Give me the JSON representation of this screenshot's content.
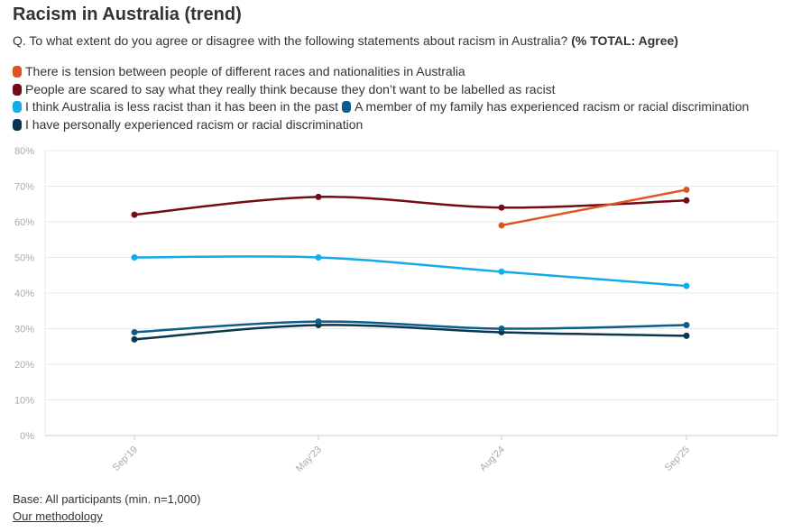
{
  "title": "Racism in Australia (trend)",
  "subtitle": "Q. To what extent do you agree or disagree with the following statements about racism in Australia?",
  "subtitle_bold": "(% TOTAL: Agree)",
  "footer": {
    "base": "Base: All participants (min. n=1,000)",
    "link": "Our methodology"
  },
  "chart_data": {
    "type": "line",
    "x": [
      "Sep'19",
      "May'23",
      "Aug'24",
      "Sep'25"
    ],
    "ylim": [
      0,
      80
    ],
    "yticks": [
      "0%",
      "10%",
      "20%",
      "30%",
      "40%",
      "50%",
      "60%",
      "70%",
      "80%"
    ],
    "grid": true,
    "legend_placement": "top",
    "series": [
      {
        "name": "There is tension between people of different races and nationalities in Australia",
        "color": "#e0521f",
        "values": [
          null,
          null,
          59,
          69
        ]
      },
      {
        "name": "People are scared to say what they really think because they don’t want to be labelled as racist",
        "color": "#730a14",
        "values": [
          62,
          67,
          64,
          66
        ]
      },
      {
        "name": "I think Australia is less racist than it has been in the past",
        "color": "#12ade8",
        "values": [
          50,
          50,
          46,
          42
        ]
      },
      {
        "name": "A member of my family has experienced racism or racial discrimination",
        "color": "#0b5e8c",
        "values": [
          29,
          32,
          30,
          31
        ]
      },
      {
        "name": "I have personally experienced racism or racial discrimination",
        "color": "#0a3650",
        "values": [
          27,
          31,
          29,
          28
        ]
      }
    ]
  }
}
